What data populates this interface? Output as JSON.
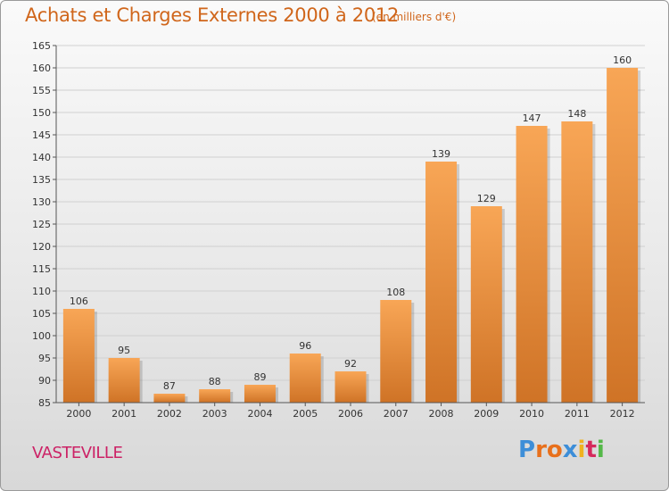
{
  "header": {
    "title": "Achats et Charges Externes 2000 à 2012",
    "unit": "(en milliers d'€)"
  },
  "footer": {
    "commune": "VASTEVILLE",
    "logo_letters": [
      "P",
      "r",
      "o",
      "x",
      "i",
      "t",
      "i"
    ]
  },
  "colors": {
    "title": "#d0661b",
    "commune": "#cc2266",
    "bar_light": "#f8a656",
    "bar_dark": "#cf7326",
    "logo": [
      "#3d8ed8",
      "#e8701c",
      "#e8701c",
      "#3d8ed8",
      "#f0b21e",
      "#d52a5c",
      "#54b848"
    ]
  },
  "chart_data": {
    "type": "bar",
    "title": "Achats et Charges Externes 2000 à 2012",
    "subtitle": "(en milliers d'€)",
    "xlabel": "",
    "ylabel": "",
    "categories": [
      "2000",
      "2001",
      "2002",
      "2003",
      "2004",
      "2005",
      "2006",
      "2007",
      "2008",
      "2009",
      "2010",
      "2011",
      "2012"
    ],
    "values": [
      106,
      95,
      87,
      88,
      89,
      96,
      92,
      108,
      139,
      129,
      147,
      148,
      160
    ],
    "ylim": [
      85,
      165
    ],
    "yticks": [
      85,
      90,
      95,
      100,
      105,
      110,
      115,
      120,
      125,
      130,
      135,
      140,
      145,
      150,
      155,
      160,
      165
    ],
    "grid": true,
    "legend": "none"
  }
}
